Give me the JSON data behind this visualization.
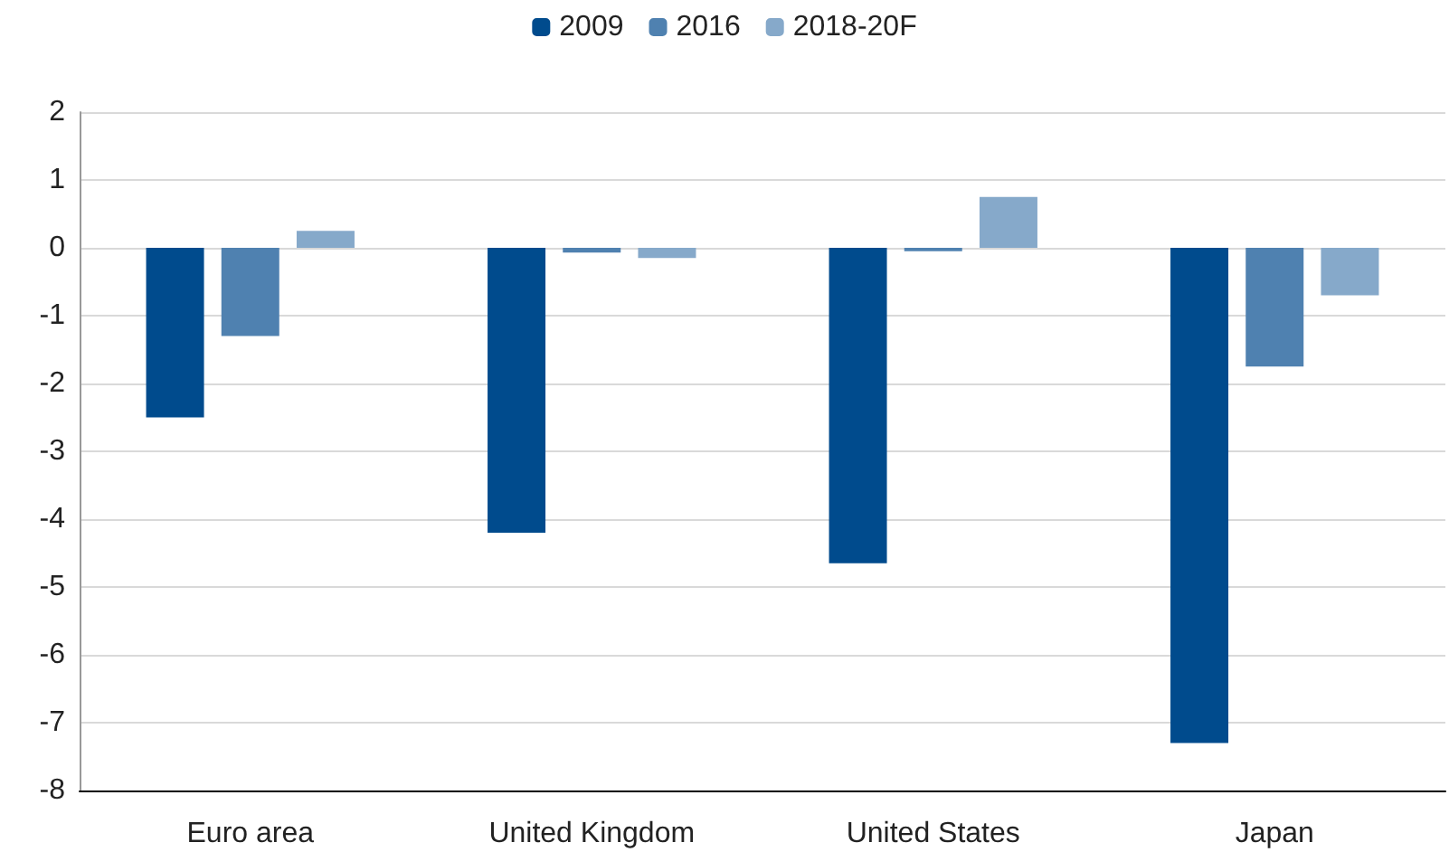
{
  "chart_data": {
    "type": "bar",
    "categories": [
      "Euro area",
      "United Kingdom",
      "United States",
      "Japan"
    ],
    "series": [
      {
        "name": "2009",
        "color": "#004b8d",
        "values": [
          -2.5,
          -4.2,
          -4.65,
          -7.3
        ]
      },
      {
        "name": "2016",
        "color": "#4f81b0",
        "values": [
          -1.3,
          -0.07,
          -0.05,
          -1.75
        ]
      },
      {
        "name": "2018-20F",
        "color": "#86a9ca",
        "values": [
          0.25,
          -0.15,
          0.75,
          -0.7
        ]
      }
    ],
    "ylim": [
      -8,
      2
    ],
    "yticks": [
      -8,
      -7,
      -6,
      -5,
      -4,
      -3,
      -2,
      -1,
      0,
      1,
      2
    ],
    "grid": "y",
    "legend": "top"
  }
}
